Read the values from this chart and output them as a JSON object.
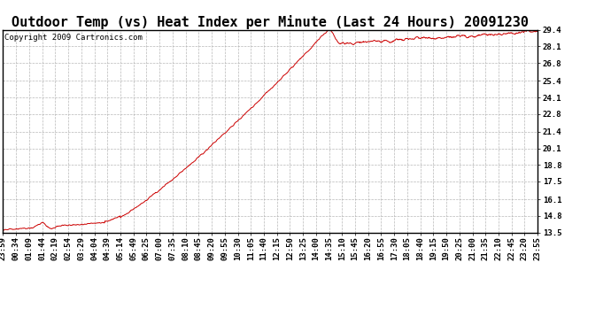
{
  "title": "Outdoor Temp (vs) Heat Index per Minute (Last 24 Hours) 20091230",
  "copyright_text": "Copyright 2009 Cartronics.com",
  "line_color": "#cc0000",
  "background_color": "#ffffff",
  "grid_color": "#b0b0b0",
  "y_min": 13.5,
  "y_max": 29.4,
  "y_ticks": [
    13.5,
    14.8,
    16.1,
    17.5,
    18.8,
    20.1,
    21.4,
    22.8,
    24.1,
    25.4,
    26.8,
    28.1,
    29.4
  ],
  "x_labels": [
    "23:59",
    "00:34",
    "01:09",
    "01:44",
    "02:19",
    "02:54",
    "03:29",
    "04:04",
    "04:39",
    "05:14",
    "05:49",
    "06:25",
    "07:00",
    "07:35",
    "08:10",
    "08:45",
    "09:20",
    "09:55",
    "10:30",
    "11:05",
    "11:40",
    "12:15",
    "12:50",
    "13:25",
    "14:00",
    "14:35",
    "15:10",
    "15:45",
    "16:20",
    "16:55",
    "17:30",
    "18:05",
    "18:40",
    "19:15",
    "19:50",
    "20:25",
    "21:00",
    "21:35",
    "22:10",
    "22:45",
    "23:20",
    "23:55"
  ],
  "n_points": 1440,
  "title_fontsize": 11,
  "tick_fontsize": 6.5,
  "copyright_fontsize": 6.5
}
